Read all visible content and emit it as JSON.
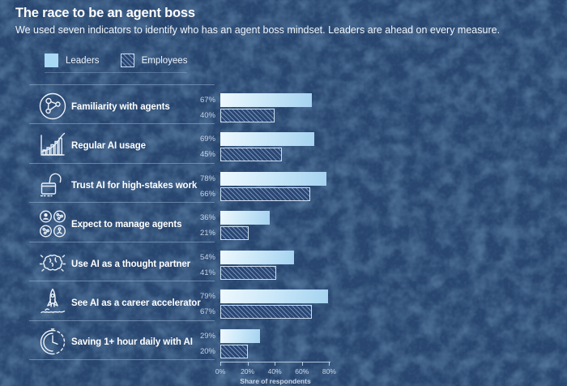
{
  "header": {
    "title": "The race to be an agent boss",
    "subtitle": "We used seven indicators to identify who has an agent boss mindset. Leaders are ahead on every measure."
  },
  "legend": [
    {
      "label": "Leaders",
      "style": "solid"
    },
    {
      "label": "Employees",
      "style": "hatched"
    }
  ],
  "colors": {
    "background": "#28466f",
    "background_blotch": "#1c3862",
    "leaders_bar_start": "#eef8fe",
    "leaders_bar_end": "#a5d3f0",
    "employees_hatch_line": "#6e8ebb",
    "employees_hatch_bg": "#2b4671",
    "employees_border": "#cfe0f0",
    "divider": "rgba(165,190,220,0.5)",
    "title_text": "#ffffff",
    "value_text": "#c6d2e3"
  },
  "chart_data": {
    "type": "bar",
    "orientation": "horizontal",
    "unit": "%",
    "xlabel": "Share of respondents",
    "xlim": [
      0,
      80
    ],
    "grid": false,
    "legend_position": "top-left",
    "x_ticks": [
      {
        "label": "0%",
        "value": 0
      },
      {
        "label": "20%",
        "value": 20
      },
      {
        "label": "40%",
        "value": 40
      },
      {
        "label": "60%",
        "value": 60
      },
      {
        "label": "80%",
        "value": 80
      }
    ],
    "categories": [
      "Familiarity with agents",
      "Regular AI usage",
      "Trust AI for high-stakes work",
      "Expect to manage agents",
      "Use AI as a thought partner",
      "See AI as a career accelerator",
      "Saving 1+ hour daily with AI"
    ],
    "series": [
      {
        "name": "Leaders",
        "values": [
          67,
          69,
          78,
          36,
          54,
          79,
          29
        ]
      },
      {
        "name": "Employees",
        "values": [
          40,
          45,
          66,
          21,
          41,
          67,
          20
        ]
      }
    ],
    "rows": [
      {
        "label": "Familiarity with agents",
        "icon": "network-nodes-icon",
        "leaders": 67,
        "employees": 40
      },
      {
        "label": "Regular AI usage",
        "icon": "growth-chart-icon",
        "leaders": 69,
        "employees": 45
      },
      {
        "label": "Trust AI for high-stakes work",
        "icon": "open-lock-icon",
        "leaders": 78,
        "employees": 66
      },
      {
        "label": "Expect to manage agents",
        "icon": "agents-team-icon",
        "leaders": 36,
        "employees": 21
      },
      {
        "label": "Use AI as a thought partner",
        "icon": "brain-icon",
        "leaders": 54,
        "employees": 41
      },
      {
        "label": "See AI as a career accelerator",
        "icon": "rocket-icon",
        "leaders": 79,
        "employees": 67
      },
      {
        "label": "Saving 1+ hour daily with AI",
        "icon": "clock-icon",
        "leaders": 29,
        "employees": 20
      }
    ]
  }
}
